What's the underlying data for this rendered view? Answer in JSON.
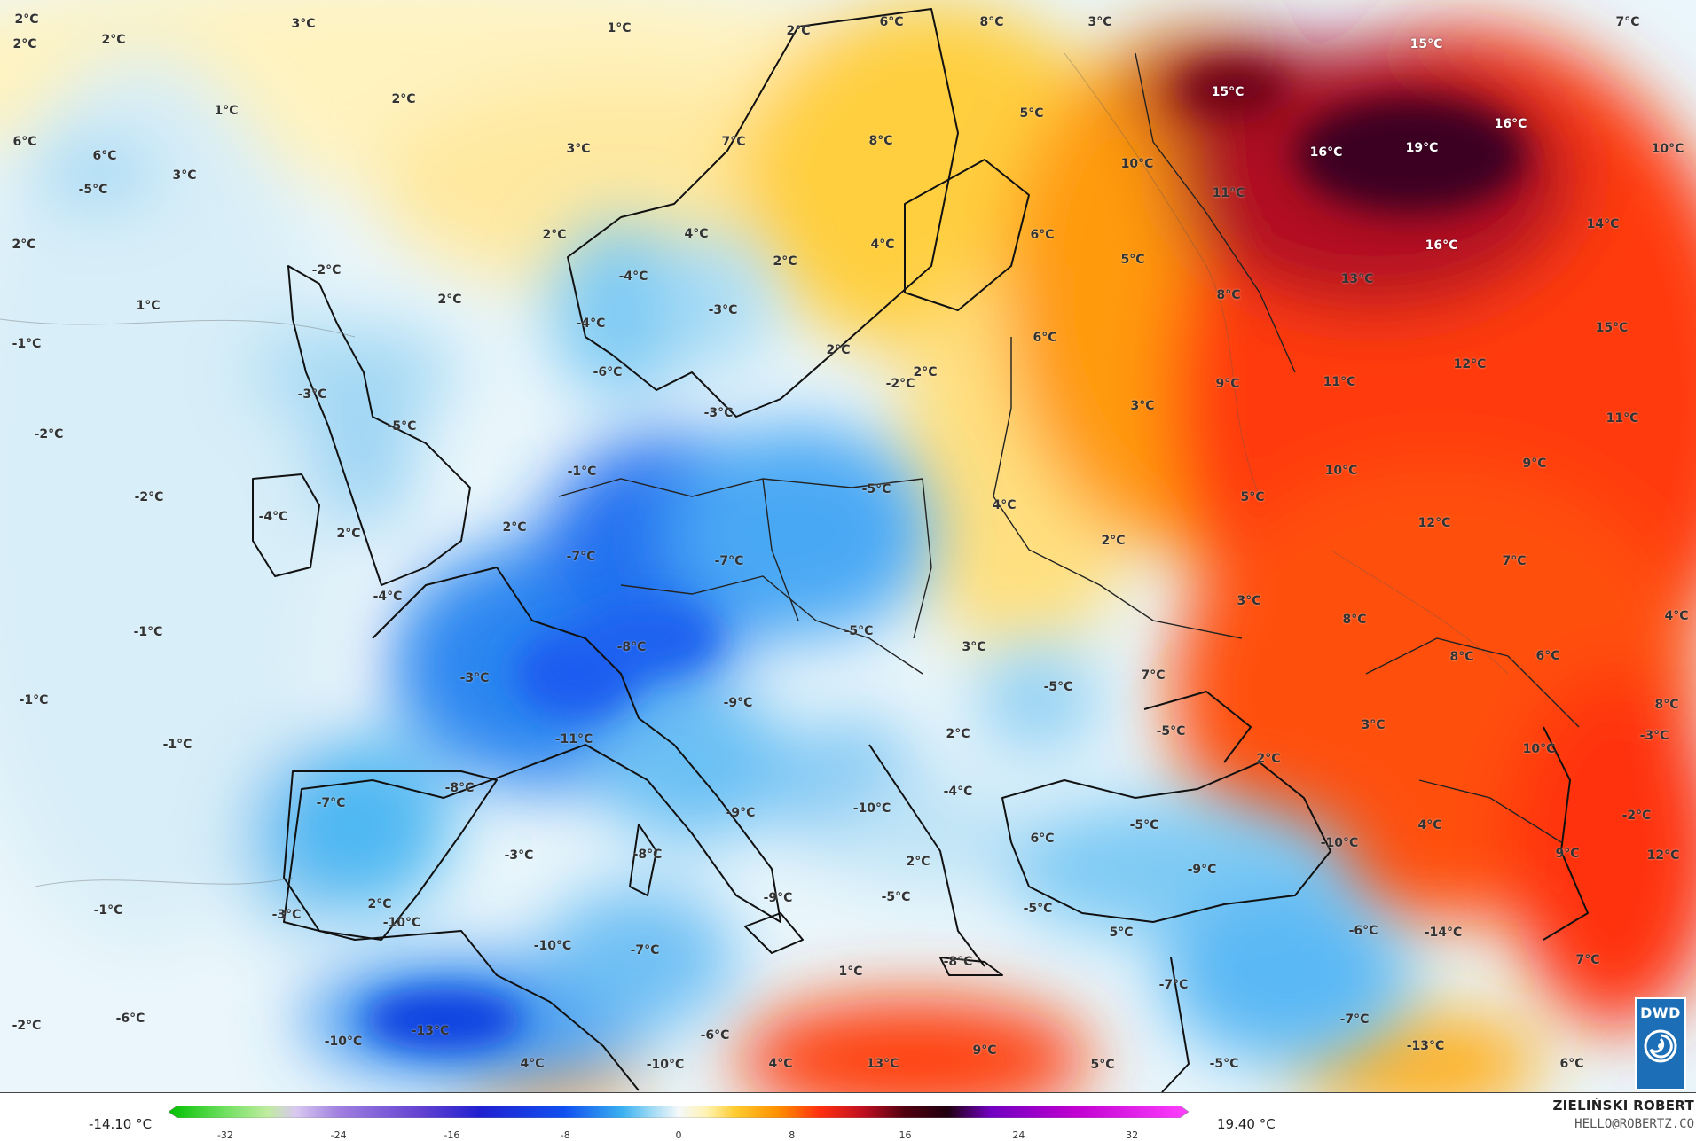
{
  "map": {
    "temperature_labels": [
      {
        "text": "2°C",
        "lx": 30,
        "ly": 22
      },
      {
        "text": "3°C",
        "lx": 342,
        "ly": 27
      },
      {
        "text": "1°C",
        "lx": 698,
        "ly": 32
      },
      {
        "text": "2°C",
        "lx": 28,
        "ly": 50
      },
      {
        "text": "2°C",
        "lx": 128,
        "ly": 45
      },
      {
        "text": "2°C",
        "lx": 900,
        "ly": 35
      },
      {
        "text": "6°C",
        "lx": 1005,
        "ly": 25
      },
      {
        "text": "8°C",
        "lx": 1118,
        "ly": 25
      },
      {
        "text": "3°C",
        "lx": 1240,
        "ly": 25
      },
      {
        "text": "7°C",
        "lx": 1835,
        "ly": 25
      },
      {
        "text": "15°C",
        "lx": 1608,
        "ly": 50,
        "light": true
      },
      {
        "text": "1°C",
        "lx": 255,
        "ly": 125
      },
      {
        "text": "2°C",
        "lx": 455,
        "ly": 112
      },
      {
        "text": "15°C",
        "lx": 1384,
        "ly": 104,
        "light": true
      },
      {
        "text": "5°C",
        "lx": 1163,
        "ly": 128
      },
      {
        "text": "16°C",
        "lx": 1703,
        "ly": 140,
        "light": true
      },
      {
        "text": "6°C",
        "lx": 28,
        "ly": 160
      },
      {
        "text": "6°C",
        "lx": 118,
        "ly": 176
      },
      {
        "text": "3°C",
        "lx": 208,
        "ly": 198
      },
      {
        "text": "3°C",
        "lx": 652,
        "ly": 168
      },
      {
        "text": "7°C",
        "lx": 827,
        "ly": 160
      },
      {
        "text": "8°C",
        "lx": 993,
        "ly": 159
      },
      {
        "text": "10°C",
        "lx": 1282,
        "ly": 185
      },
      {
        "text": "16°C",
        "lx": 1495,
        "ly": 172,
        "light": true
      },
      {
        "text": "19°C",
        "lx": 1603,
        "ly": 167,
        "light": true
      },
      {
        "text": "10°C",
        "lx": 1880,
        "ly": 168
      },
      {
        "text": "-5°C",
        "lx": 105,
        "ly": 214
      },
      {
        "text": "11°C",
        "lx": 1385,
        "ly": 218
      },
      {
        "text": "2°C",
        "lx": 27,
        "ly": 276
      },
      {
        "text": "2°C",
        "lx": 625,
        "ly": 265
      },
      {
        "text": "4°C",
        "lx": 785,
        "ly": 264
      },
      {
        "text": "6°C",
        "lx": 1175,
        "ly": 265
      },
      {
        "text": "14°C",
        "lx": 1807,
        "ly": 253
      },
      {
        "text": "2°C",
        "lx": 885,
        "ly": 295
      },
      {
        "text": "4°C",
        "lx": 995,
        "ly": 276
      },
      {
        "text": "16°C",
        "lx": 1625,
        "ly": 277,
        "light": true
      },
      {
        "text": "-2°C",
        "lx": 368,
        "ly": 305
      },
      {
        "text": "-4°C",
        "lx": 714,
        "ly": 312
      },
      {
        "text": "5°C",
        "lx": 1277,
        "ly": 293
      },
      {
        "text": "13°C",
        "lx": 1530,
        "ly": 315
      },
      {
        "text": "1°C",
        "lx": 167,
        "ly": 345
      },
      {
        "text": "2°C",
        "lx": 507,
        "ly": 338
      },
      {
        "text": "-3°C",
        "lx": 815,
        "ly": 350
      },
      {
        "text": "8°C",
        "lx": 1385,
        "ly": 333
      },
      {
        "text": "-4°C",
        "lx": 666,
        "ly": 365
      },
      {
        "text": "15°C",
        "lx": 1817,
        "ly": 370
      },
      {
        "text": "-1°C",
        "lx": 30,
        "ly": 388
      },
      {
        "text": "2°C",
        "lx": 945,
        "ly": 395
      },
      {
        "text": "6°C",
        "lx": 1178,
        "ly": 381
      },
      {
        "text": "-6°C",
        "lx": 685,
        "ly": 420
      },
      {
        "text": "-2°C",
        "lx": 1015,
        "ly": 433
      },
      {
        "text": "2°C",
        "lx": 1043,
        "ly": 420
      },
      {
        "text": "12°C",
        "lx": 1657,
        "ly": 411
      },
      {
        "text": "-3°C",
        "lx": 352,
        "ly": 445
      },
      {
        "text": "9°C",
        "lx": 1384,
        "ly": 433
      },
      {
        "text": "11°C",
        "lx": 1510,
        "ly": 431
      },
      {
        "text": "-5°C",
        "lx": 453,
        "ly": 481
      },
      {
        "text": "-3°C",
        "lx": 810,
        "ly": 466
      },
      {
        "text": "3°C",
        "lx": 1288,
        "ly": 458
      },
      {
        "text": "11°C",
        "lx": 1829,
        "ly": 472
      },
      {
        "text": "-2°C",
        "lx": 55,
        "ly": 490
      },
      {
        "text": "-1°C",
        "lx": 656,
        "ly": 532
      },
      {
        "text": "9°C",
        "lx": 1730,
        "ly": 523
      },
      {
        "text": "-5°C",
        "lx": 988,
        "ly": 552
      },
      {
        "text": "10°C",
        "lx": 1512,
        "ly": 531
      },
      {
        "text": "-2°C",
        "lx": 168,
        "ly": 561
      },
      {
        "text": "5°C",
        "lx": 1412,
        "ly": 561
      },
      {
        "text": "4°C",
        "lx": 1132,
        "ly": 570
      },
      {
        "text": "-4°C",
        "lx": 308,
        "ly": 583
      },
      {
        "text": "12°C",
        "lx": 1617,
        "ly": 590
      },
      {
        "text": "2°C",
        "lx": 393,
        "ly": 602
      },
      {
        "text": "2°C",
        "lx": 580,
        "ly": 595
      },
      {
        "text": "-7°C",
        "lx": 655,
        "ly": 628
      },
      {
        "text": "-7°C",
        "lx": 822,
        "ly": 633
      },
      {
        "text": "2°C",
        "lx": 1255,
        "ly": 610
      },
      {
        "text": "7°C",
        "lx": 1707,
        "ly": 633
      },
      {
        "text": "-4°C",
        "lx": 437,
        "ly": 673
      },
      {
        "text": "3°C",
        "lx": 1408,
        "ly": 678
      },
      {
        "text": "4°C",
        "lx": 1890,
        "ly": 695
      },
      {
        "text": "-1°C",
        "lx": 167,
        "ly": 713
      },
      {
        "text": "-5°C",
        "lx": 968,
        "ly": 712
      },
      {
        "text": "8°C",
        "lx": 1527,
        "ly": 699
      },
      {
        "text": "-8°C",
        "lx": 712,
        "ly": 730
      },
      {
        "text": "3°C",
        "lx": 1098,
        "ly": 730
      },
      {
        "text": "8°C",
        "lx": 1648,
        "ly": 741
      },
      {
        "text": "6°C",
        "lx": 1745,
        "ly": 740
      },
      {
        "text": "-3°C",
        "lx": 535,
        "ly": 765
      },
      {
        "text": "-5°C",
        "lx": 1193,
        "ly": 775
      },
      {
        "text": "7°C",
        "lx": 1300,
        "ly": 762
      },
      {
        "text": "-1°C",
        "lx": 38,
        "ly": 790
      },
      {
        "text": "-9°C",
        "lx": 832,
        "ly": 793
      },
      {
        "text": "8°C",
        "lx": 1879,
        "ly": 795
      },
      {
        "text": "-5°C",
        "lx": 1320,
        "ly": 825
      },
      {
        "text": "3°C",
        "lx": 1548,
        "ly": 818
      },
      {
        "text": "2°C",
        "lx": 1080,
        "ly": 828
      },
      {
        "text": "-3°C",
        "lx": 1865,
        "ly": 830
      },
      {
        "text": "-1°C",
        "lx": 200,
        "ly": 840
      },
      {
        "text": "-11°C",
        "lx": 647,
        "ly": 834
      },
      {
        "text": "10°C",
        "lx": 1735,
        "ly": 845
      },
      {
        "text": "2°C",
        "lx": 1430,
        "ly": 856
      },
      {
        "text": "-8°C",
        "lx": 518,
        "ly": 889
      },
      {
        "text": "-4°C",
        "lx": 1080,
        "ly": 893
      },
      {
        "text": "-7°C",
        "lx": 373,
        "ly": 906
      },
      {
        "text": "-9°C",
        "lx": 835,
        "ly": 917
      },
      {
        "text": "-10°C",
        "lx": 983,
        "ly": 912
      },
      {
        "text": "-2°C",
        "lx": 1845,
        "ly": 920
      },
      {
        "text": "-5°C",
        "lx": 1290,
        "ly": 931
      },
      {
        "text": "4°C",
        "lx": 1612,
        "ly": 931
      },
      {
        "text": "6°C",
        "lx": 1175,
        "ly": 946
      },
      {
        "text": "-10°C",
        "lx": 1510,
        "ly": 951
      },
      {
        "text": "-3°C",
        "lx": 585,
        "ly": 965
      },
      {
        "text": "-8°C",
        "lx": 730,
        "ly": 964
      },
      {
        "text": "2°C",
        "lx": 1035,
        "ly": 972
      },
      {
        "text": "-9°C",
        "lx": 1355,
        "ly": 981
      },
      {
        "text": "9°C",
        "lx": 1767,
        "ly": 963
      },
      {
        "text": "12°C",
        "lx": 1875,
        "ly": 965
      },
      {
        "text": "-9°C",
        "lx": 877,
        "ly": 1013
      },
      {
        "text": "-5°C",
        "lx": 1010,
        "ly": 1012
      },
      {
        "text": "2°C",
        "lx": 428,
        "ly": 1020
      },
      {
        "text": "-5°C",
        "lx": 1170,
        "ly": 1025
      },
      {
        "text": "-3°C",
        "lx": 323,
        "ly": 1032
      },
      {
        "text": "-10°C",
        "lx": 453,
        "ly": 1041
      },
      {
        "text": "-1°C",
        "lx": 122,
        "ly": 1027
      },
      {
        "text": "5°C",
        "lx": 1264,
        "ly": 1052
      },
      {
        "text": "-6°C",
        "lx": 1537,
        "ly": 1050
      },
      {
        "text": "-14°C",
        "lx": 1627,
        "ly": 1052
      },
      {
        "text": "-10°C",
        "lx": 623,
        "ly": 1067
      },
      {
        "text": "-7°C",
        "lx": 727,
        "ly": 1072
      },
      {
        "text": "-8°C",
        "lx": 1080,
        "ly": 1085
      },
      {
        "text": "7°C",
        "lx": 1790,
        "ly": 1083
      },
      {
        "text": "1°C",
        "lx": 959,
        "ly": 1096
      },
      {
        "text": "-7°C",
        "lx": 1323,
        "ly": 1111
      },
      {
        "text": "-2°C",
        "lx": 30,
        "ly": 1157
      },
      {
        "text": "-6°C",
        "lx": 147,
        "ly": 1149
      },
      {
        "text": "-13°C",
        "lx": 485,
        "ly": 1163
      },
      {
        "text": "-7°C",
        "lx": 1527,
        "ly": 1150
      },
      {
        "text": "-10°C",
        "lx": 387,
        "ly": 1175
      },
      {
        "text": "-6°C",
        "lx": 806,
        "ly": 1168
      },
      {
        "text": "-13°C",
        "lx": 1607,
        "ly": 1180
      },
      {
        "text": "4°C",
        "lx": 600,
        "ly": 1200
      },
      {
        "text": "-10°C",
        "lx": 750,
        "ly": 1201
      },
      {
        "text": "4°C",
        "lx": 880,
        "ly": 1200
      },
      {
        "text": "13°C",
        "lx": 995,
        "ly": 1200
      },
      {
        "text": "9°C",
        "lx": 1110,
        "ly": 1185
      },
      {
        "text": "5°C",
        "lx": 1243,
        "ly": 1201
      },
      {
        "text": "-5°C",
        "lx": 1380,
        "ly": 1200
      },
      {
        "text": "6°C",
        "lx": 1772,
        "ly": 1200
      }
    ]
  },
  "logo": {
    "text": "DWD"
  },
  "legend": {
    "min_label": "-14.10 °C",
    "max_label": "19.40 °C",
    "ticks": [
      "-32",
      "-24",
      "-16",
      "-8",
      "0",
      "8",
      "16",
      "24",
      "32"
    ],
    "range": [
      -36,
      36
    ],
    "stops": [
      {
        "v": -36,
        "c": "#00c000"
      },
      {
        "v": -32,
        "c": "#70e060"
      },
      {
        "v": -29,
        "c": "#c0eca0"
      },
      {
        "v": -27,
        "c": "#d8c8f0"
      },
      {
        "v": -24,
        "c": "#a080e0"
      },
      {
        "v": -18,
        "c": "#6040d0"
      },
      {
        "v": -14,
        "c": "#2020d0"
      },
      {
        "v": -8,
        "c": "#1050f0"
      },
      {
        "v": -4,
        "c": "#3ab0f0"
      },
      {
        "v": -2,
        "c": "#9ad8f4"
      },
      {
        "v": 0,
        "c": "#f4f8fa"
      },
      {
        "v": 2,
        "c": "#fff2b0"
      },
      {
        "v": 4,
        "c": "#ffcc30"
      },
      {
        "v": 7,
        "c": "#ff9000"
      },
      {
        "v": 10,
        "c": "#ff3010"
      },
      {
        "v": 13,
        "c": "#c01020"
      },
      {
        "v": 16,
        "c": "#500010"
      },
      {
        "v": 19,
        "c": "#200010"
      },
      {
        "v": 22,
        "c": "#7000c0"
      },
      {
        "v": 28,
        "c": "#c000d0"
      },
      {
        "v": 36,
        "c": "#ff40ff"
      }
    ]
  },
  "author": {
    "name": "ZIELIŃSKI ROBERT",
    "email": "HELLO@ROBERTZ.CO"
  }
}
